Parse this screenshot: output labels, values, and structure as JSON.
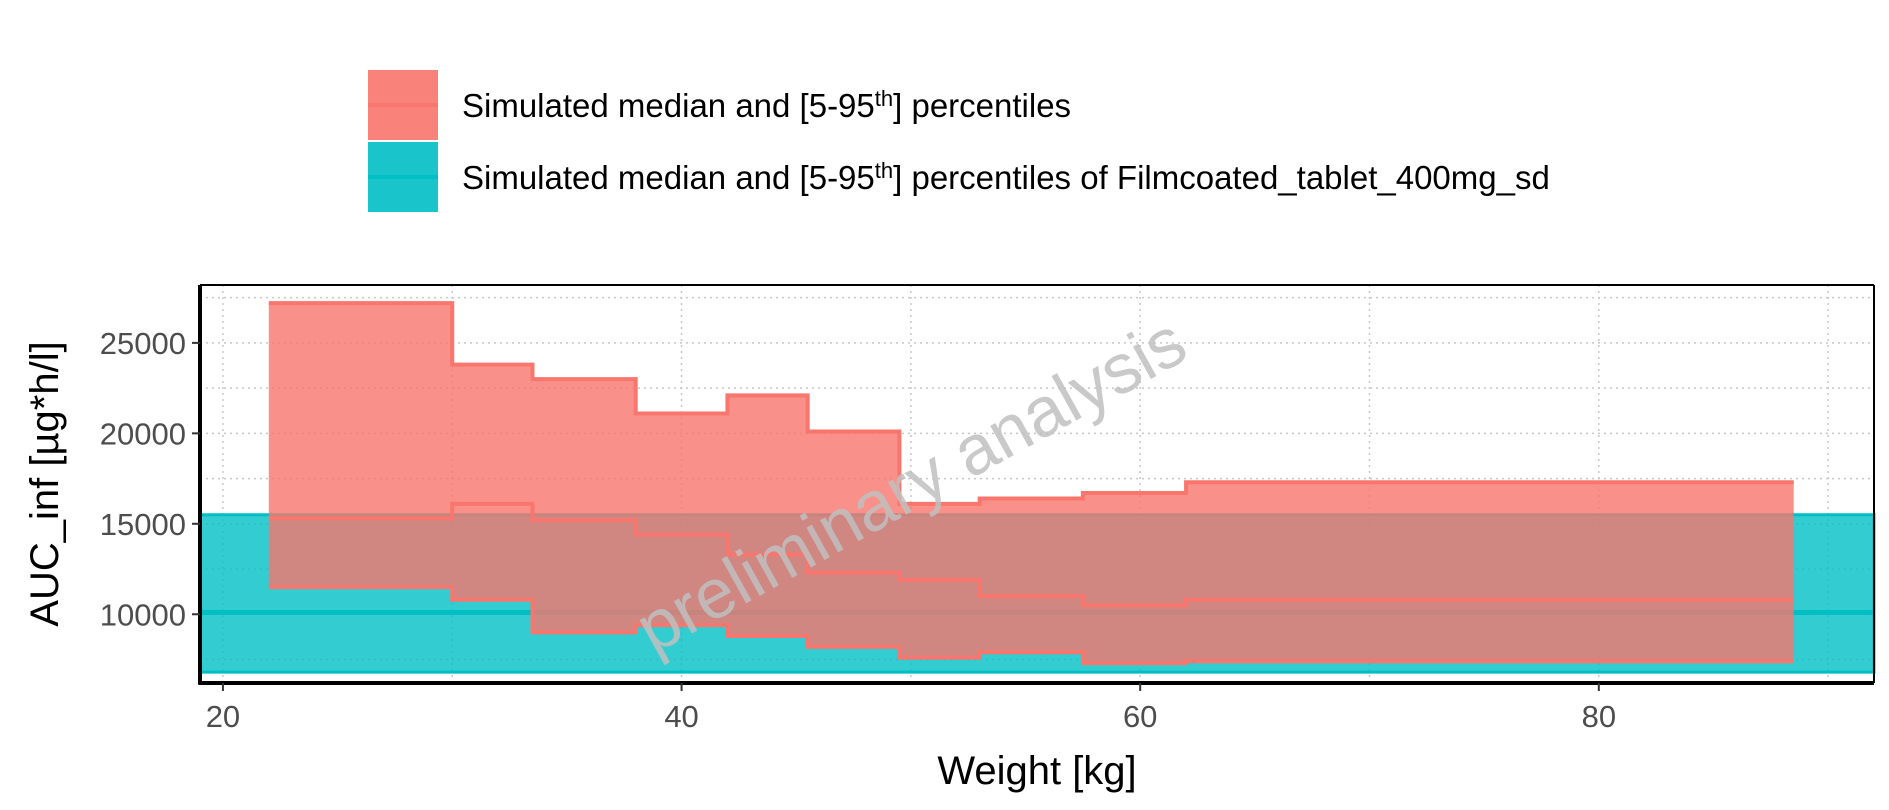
{
  "chart_data": {
    "type": "area",
    "xlabel": "Weight [kg]",
    "ylabel": "AUC_inf [µg*h/l]",
    "xlim": [
      19,
      92
    ],
    "ylim": [
      6200,
      28200
    ],
    "x_ticks": [
      "20",
      "40",
      "60",
      "80"
    ],
    "x_tick_values": [
      20,
      40,
      60,
      80
    ],
    "y_ticks": [
      "10000",
      "15000",
      "20000",
      "25000"
    ],
    "y_tick_values": [
      10000,
      15000,
      20000,
      25000
    ],
    "grid": true,
    "legend_position": "top",
    "watermark": "preliminary analysis",
    "series": [
      {
        "name_parts": [
          "Simulated median and [5-95",
          "th",
          "] percentiles"
        ],
        "color": "#F8766D",
        "step": "hv",
        "x": [
          22,
          30,
          33.5,
          38,
          42,
          45.5,
          49.5,
          53,
          57.5,
          62,
          88.5
        ],
        "upper": [
          27200,
          23800,
          23000,
          21100,
          22100,
          20100,
          16100,
          16400,
          16700,
          17300,
          17300
        ],
        "median": [
          15300,
          16100,
          15200,
          14400,
          13300,
          12300,
          11900,
          11000,
          10500,
          10800,
          10800
        ],
        "lower": [
          11500,
          10800,
          9000,
          9400,
          8800,
          8200,
          7600,
          7900,
          7300,
          7400,
          7400
        ]
      },
      {
        "name_parts": [
          "Simulated median and [5-95",
          "th",
          "] percentiles of Filmcoated_tablet_400mg_sd"
        ],
        "color": "#00BFC4",
        "x_range": [
          19,
          92
        ],
        "upper": 15500,
        "median": 10100,
        "lower": 6800
      }
    ]
  }
}
